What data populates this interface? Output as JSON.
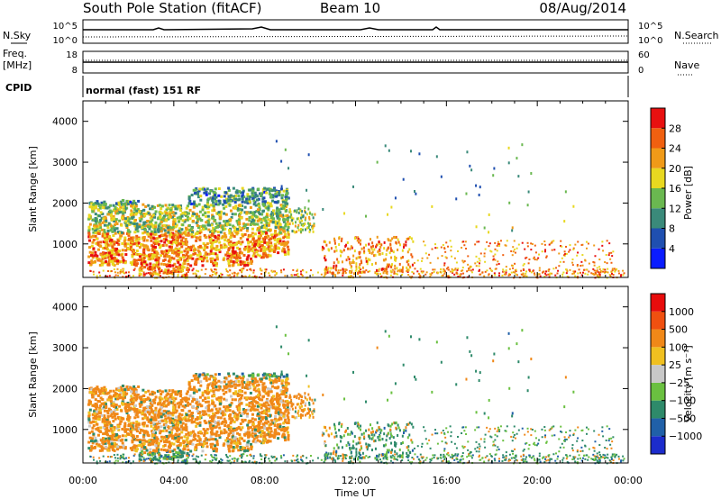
{
  "header": {
    "station": "South Pole Station (fitACF)",
    "beam": "Beam 10",
    "date": "08/Aug/2014"
  },
  "strip": {
    "nsky_label": "N.Sky",
    "nsky_ticks": [
      "10^5",
      "10^0"
    ],
    "nsearch_label": "N.Search",
    "nsearch_ticks": [
      "10^5",
      "10^0"
    ],
    "freq_label": "Freq.",
    "freq_unit": "[MHz]",
    "freq_ticks": [
      "18",
      "8"
    ],
    "nave_label": "Nave",
    "nave_ticks": [
      "60",
      "0"
    ],
    "cpid_label": "CPID",
    "cpid_text": "normal (fast) 151 RF"
  },
  "chart_data": [
    {
      "type": "heatmap",
      "name": "power-panel",
      "ylabel": "Slant Range [km]",
      "ylim": [
        180,
        4500
      ],
      "yticks": [
        "1000",
        "2000",
        "3000",
        "4000"
      ],
      "xlim": [
        0,
        24
      ],
      "colorbar_label": "Power [dB]",
      "colorbar_ticks": [
        "4",
        "8",
        "12",
        "16",
        "20",
        "24",
        "28"
      ],
      "colors": [
        "#0a1cff",
        "#1f4fb0",
        "#3a8a7a",
        "#6ab850",
        "#e8d820",
        "#f09a18",
        "#f06010",
        "#e81010"
      ]
    },
    {
      "type": "heatmap",
      "name": "velocity-panel",
      "ylabel": "Slant Range [km]",
      "ylim": [
        180,
        4500
      ],
      "yticks": [
        "1000",
        "2000",
        "3000",
        "4000"
      ],
      "xlim": [
        0,
        24
      ],
      "xlabel": "Time UT",
      "xticks": [
        "00:00",
        "04:00",
        "08:00",
        "12:00",
        "16:00",
        "20:00",
        "00:00"
      ],
      "colorbar_label": "Velocity [m s⁻¹]",
      "colorbar_ticks": [
        "1000",
        "500",
        "100",
        "25",
        "−25",
        "−100",
        "−500",
        "−1000"
      ],
      "colors": [
        "#1c2ccc",
        "#2060a8",
        "#2e8a6a",
        "#6ac040",
        "#c8c8c8",
        "#f0c020",
        "#f08818",
        "#f05010",
        "#e80c0c"
      ]
    }
  ]
}
